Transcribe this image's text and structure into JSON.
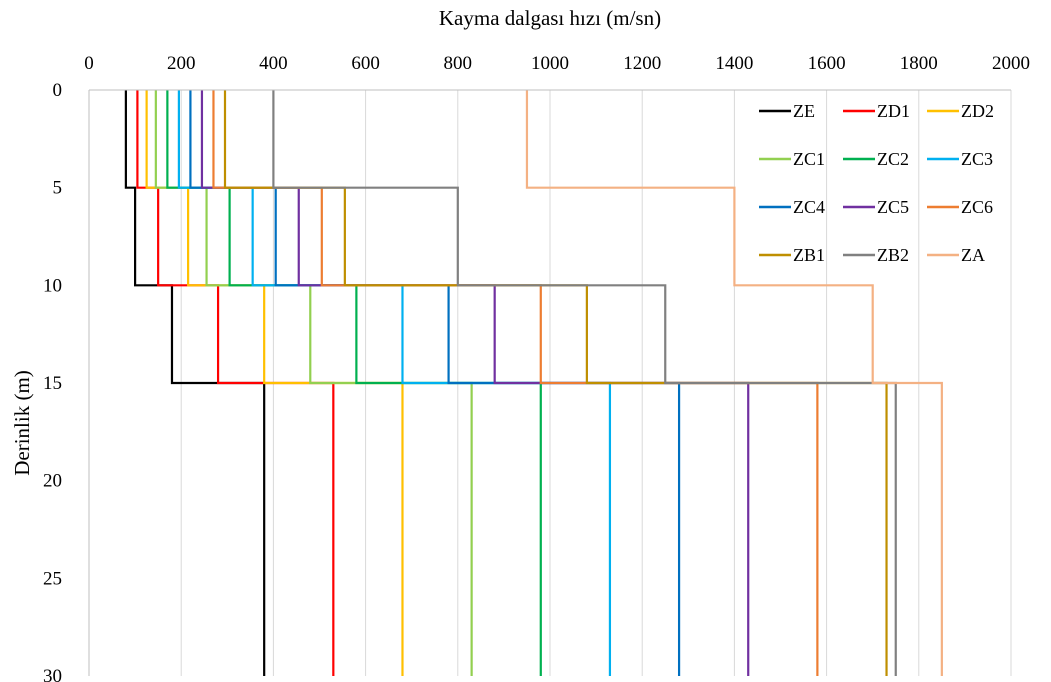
{
  "chart_data": {
    "type": "line",
    "title": "",
    "xlabel": "Kayma dalgası hızı (m/sn)",
    "ylabel": "Derinlik (m)",
    "xlim": [
      0,
      2000
    ],
    "ylim": [
      0,
      30
    ],
    "y_inverted": true,
    "x_axis_position": "top",
    "xticks": [
      0,
      200,
      400,
      600,
      800,
      1000,
      1200,
      1400,
      1600,
      1800,
      2000
    ],
    "yticks": [
      0,
      5,
      10,
      15,
      20,
      25,
      30
    ],
    "grid": "vertical",
    "legend_placement": "top-right",
    "step_depths": [
      0,
      5,
      10,
      15,
      30
    ],
    "series": [
      {
        "name": "ZE",
        "color": "#000000",
        "velocities": [
          80,
          100,
          180,
          380
        ]
      },
      {
        "name": "ZD1",
        "color": "#ff0000",
        "velocities": [
          105,
          150,
          280,
          530
        ]
      },
      {
        "name": "ZD2",
        "color": "#ffc000",
        "velocities": [
          125,
          215,
          380,
          680
        ]
      },
      {
        "name": "ZC1",
        "color": "#92d050",
        "velocities": [
          145,
          255,
          480,
          830
        ]
      },
      {
        "name": "ZC2",
        "color": "#00b050",
        "velocities": [
          170,
          305,
          580,
          980
        ]
      },
      {
        "name": "ZC3",
        "color": "#00b0f0",
        "velocities": [
          195,
          355,
          680,
          1130
        ]
      },
      {
        "name": "ZC4",
        "color": "#0070c0",
        "velocities": [
          220,
          405,
          780,
          1280
        ]
      },
      {
        "name": "ZC5",
        "color": "#7030a0",
        "velocities": [
          245,
          455,
          880,
          1430
        ]
      },
      {
        "name": "ZC6",
        "color": "#ed7d31",
        "velocities": [
          270,
          505,
          980,
          1580
        ]
      },
      {
        "name": "ZB1",
        "color": "#bf8f00",
        "velocities": [
          295,
          555,
          1080,
          1730
        ]
      },
      {
        "name": "ZB2",
        "color": "#808080",
        "velocities": [
          400,
          800,
          1250,
          1750
        ]
      },
      {
        "name": "ZA",
        "color": "#f4b183",
        "velocities": [
          950,
          1400,
          1700,
          1850
        ]
      }
    ]
  }
}
